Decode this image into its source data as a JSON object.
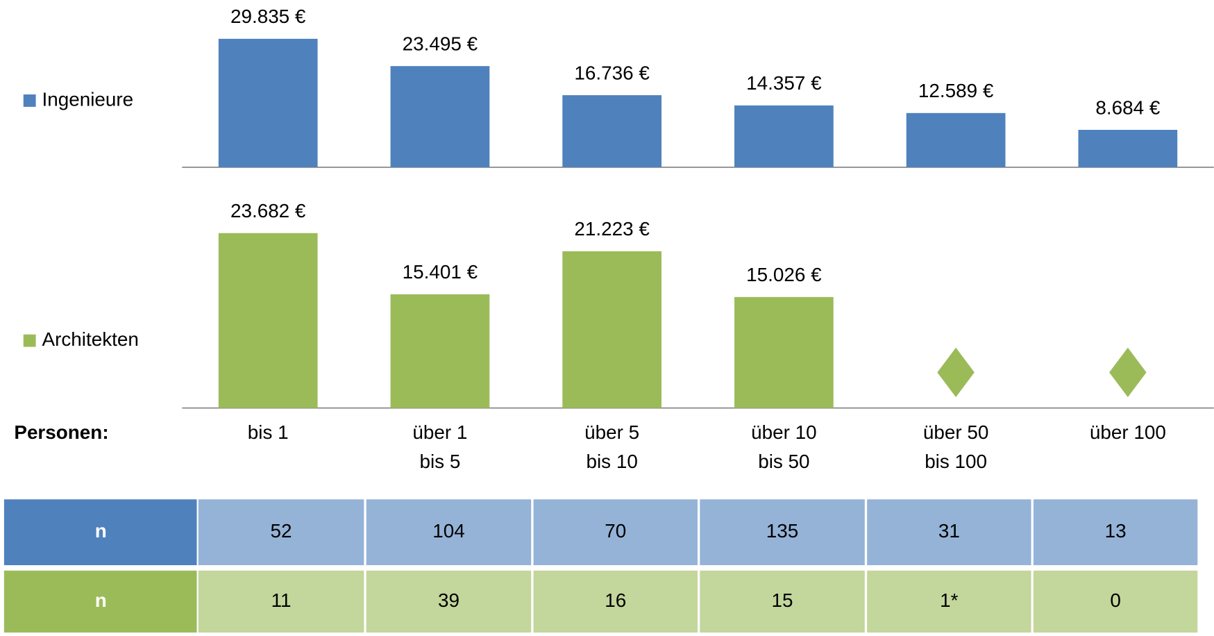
{
  "chart_data": [
    {
      "type": "bar",
      "legend": "Ingenieure",
      "color": "#4f81bd",
      "categories": [
        [
          "bis 1"
        ],
        [
          "über 1",
          "bis 5"
        ],
        [
          "über 5",
          "bis 10"
        ],
        [
          "über 10",
          "bis 50"
        ],
        [
          "über 50",
          "bis 100"
        ],
        [
          "über 100"
        ]
      ],
      "values": [
        29835,
        23495,
        16736,
        14357,
        12589,
        8684
      ],
      "value_labels": [
        "29.835 €",
        "23.495 €",
        "16.736 €",
        "14.357 €",
        "12.589 €",
        "8.684 €"
      ],
      "ylim": [
        0,
        35000
      ]
    },
    {
      "type": "bar",
      "legend": "Architekten",
      "color": "#9bbb59",
      "categories": [
        [
          "bis 1"
        ],
        [
          "über 1",
          "bis 5"
        ],
        [
          "über 5",
          "bis 10"
        ],
        [
          "über 10",
          "bis 50"
        ],
        [
          "über 50",
          "bis 100"
        ],
        [
          "über 100"
        ]
      ],
      "values": [
        23682,
        15401,
        21223,
        15026,
        null,
        null
      ],
      "value_labels": [
        "23.682 €",
        "15.401 €",
        "21.223 €",
        "15.026 €",
        null,
        null
      ],
      "ylim": [
        0,
        25000
      ]
    }
  ],
  "x_label": "Personen:",
  "table": {
    "rows": [
      {
        "label": "n",
        "values": [
          52,
          104,
          70,
          135,
          31,
          13
        ]
      },
      {
        "label": "n",
        "values": [
          11,
          39,
          16,
          15,
          "1*",
          0
        ]
      }
    ]
  }
}
